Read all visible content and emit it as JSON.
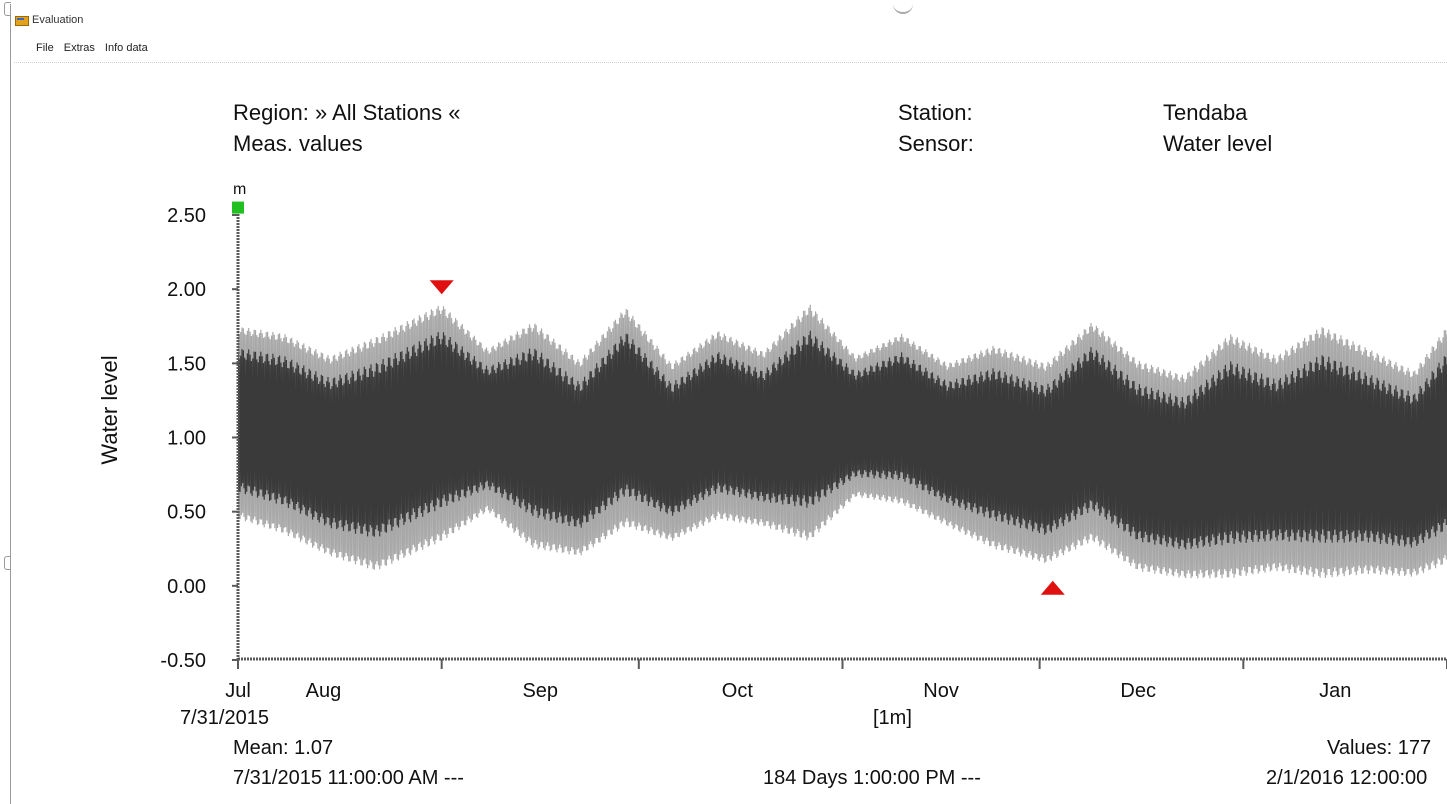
{
  "window": {
    "title": "Evaluation"
  },
  "menu": {
    "items": [
      "File",
      "Extras",
      "Info data"
    ]
  },
  "header": {
    "region_label": "Region: » All Stations «",
    "meas_label": "Meas. values",
    "station_label": "Station:",
    "station_value": "Tendaba",
    "sensor_label": "Sensor:",
    "sensor_value": "Water level"
  },
  "chart_data": {
    "type": "line",
    "title": "",
    "ylabel": "Water level",
    "yunit": "m",
    "xlabel": "[1m]",
    "ylim": [
      -0.5,
      2.5
    ],
    "yticks": [
      "2.50",
      "2.00",
      "1.50",
      "1.00",
      "0.50",
      "0.00",
      "-0.50"
    ],
    "xlim": [
      "2015-07-31",
      "2016-01-31"
    ],
    "month_labels": [
      {
        "label": "Jul",
        "date": "2015-07-31"
      },
      {
        "label": "Aug",
        "date": "2015-08-13"
      },
      {
        "label": "Sep",
        "date": "2015-09-15"
      },
      {
        "label": "Oct",
        "date": "2015-10-15"
      },
      {
        "label": "Nov",
        "date": "2015-11-15"
      },
      {
        "label": "Dec",
        "date": "2015-12-15"
      },
      {
        "label": "Jan",
        "date": "2016-01-14"
      }
    ],
    "tick_dates": [
      "2015-07-31",
      "2015-08-31",
      "2015-09-30",
      "2015-10-31",
      "2015-11-30",
      "2015-12-31",
      "2016-01-31"
    ],
    "envelope": {
      "dates": [
        "2015-07-31",
        "2015-08-07",
        "2015-08-14",
        "2015-08-21",
        "2015-08-31",
        "2015-09-07",
        "2015-09-14",
        "2015-09-21",
        "2015-09-28",
        "2015-10-05",
        "2015-10-12",
        "2015-10-19",
        "2015-10-26",
        "2015-11-02",
        "2015-11-09",
        "2015-11-16",
        "2015-11-23",
        "2015-12-01",
        "2015-12-08",
        "2015-12-15",
        "2015-12-22",
        "2015-12-29",
        "2016-01-05",
        "2016-01-12",
        "2016-01-19",
        "2016-01-26",
        "2016-01-31"
      ],
      "max": [
        1.75,
        1.7,
        1.55,
        1.68,
        1.9,
        1.6,
        1.78,
        1.52,
        1.88,
        1.5,
        1.72,
        1.58,
        1.9,
        1.55,
        1.7,
        1.5,
        1.62,
        1.5,
        1.78,
        1.52,
        1.42,
        1.7,
        1.55,
        1.75,
        1.6,
        1.45,
        1.75
      ],
      "min": [
        0.45,
        0.35,
        0.2,
        0.1,
        0.3,
        0.5,
        0.25,
        0.2,
        0.4,
        0.3,
        0.45,
        0.4,
        0.3,
        0.6,
        0.55,
        0.4,
        0.25,
        0.15,
        0.3,
        0.1,
        0.05,
        0.05,
        0.1,
        0.05,
        0.08,
        0.06,
        0.15
      ]
    },
    "markers": [
      {
        "name": "maximum",
        "date": "2015-08-31",
        "value": 2.02,
        "color": "#e01010"
      },
      {
        "name": "minimum",
        "date": "2015-12-02",
        "value": -0.02,
        "color": "#e01010"
      },
      {
        "name": "scale-top",
        "date": "2015-07-31",
        "value": 2.55,
        "color": "#20c020"
      }
    ],
    "colors": {
      "outer": "#a8a8a8",
      "inner": "#3a3a3a",
      "axis": "#5a5a5a"
    }
  },
  "footer": {
    "start_date": "7/31/2015",
    "mean": "Mean: 1.07",
    "start_time": "7/31/2015 11:00:00 AM   ---",
    "duration": "184 Days  1:00:00 PM   ---",
    "values": "Values: 177",
    "end_time": "2/1/2016 12:00:00"
  }
}
